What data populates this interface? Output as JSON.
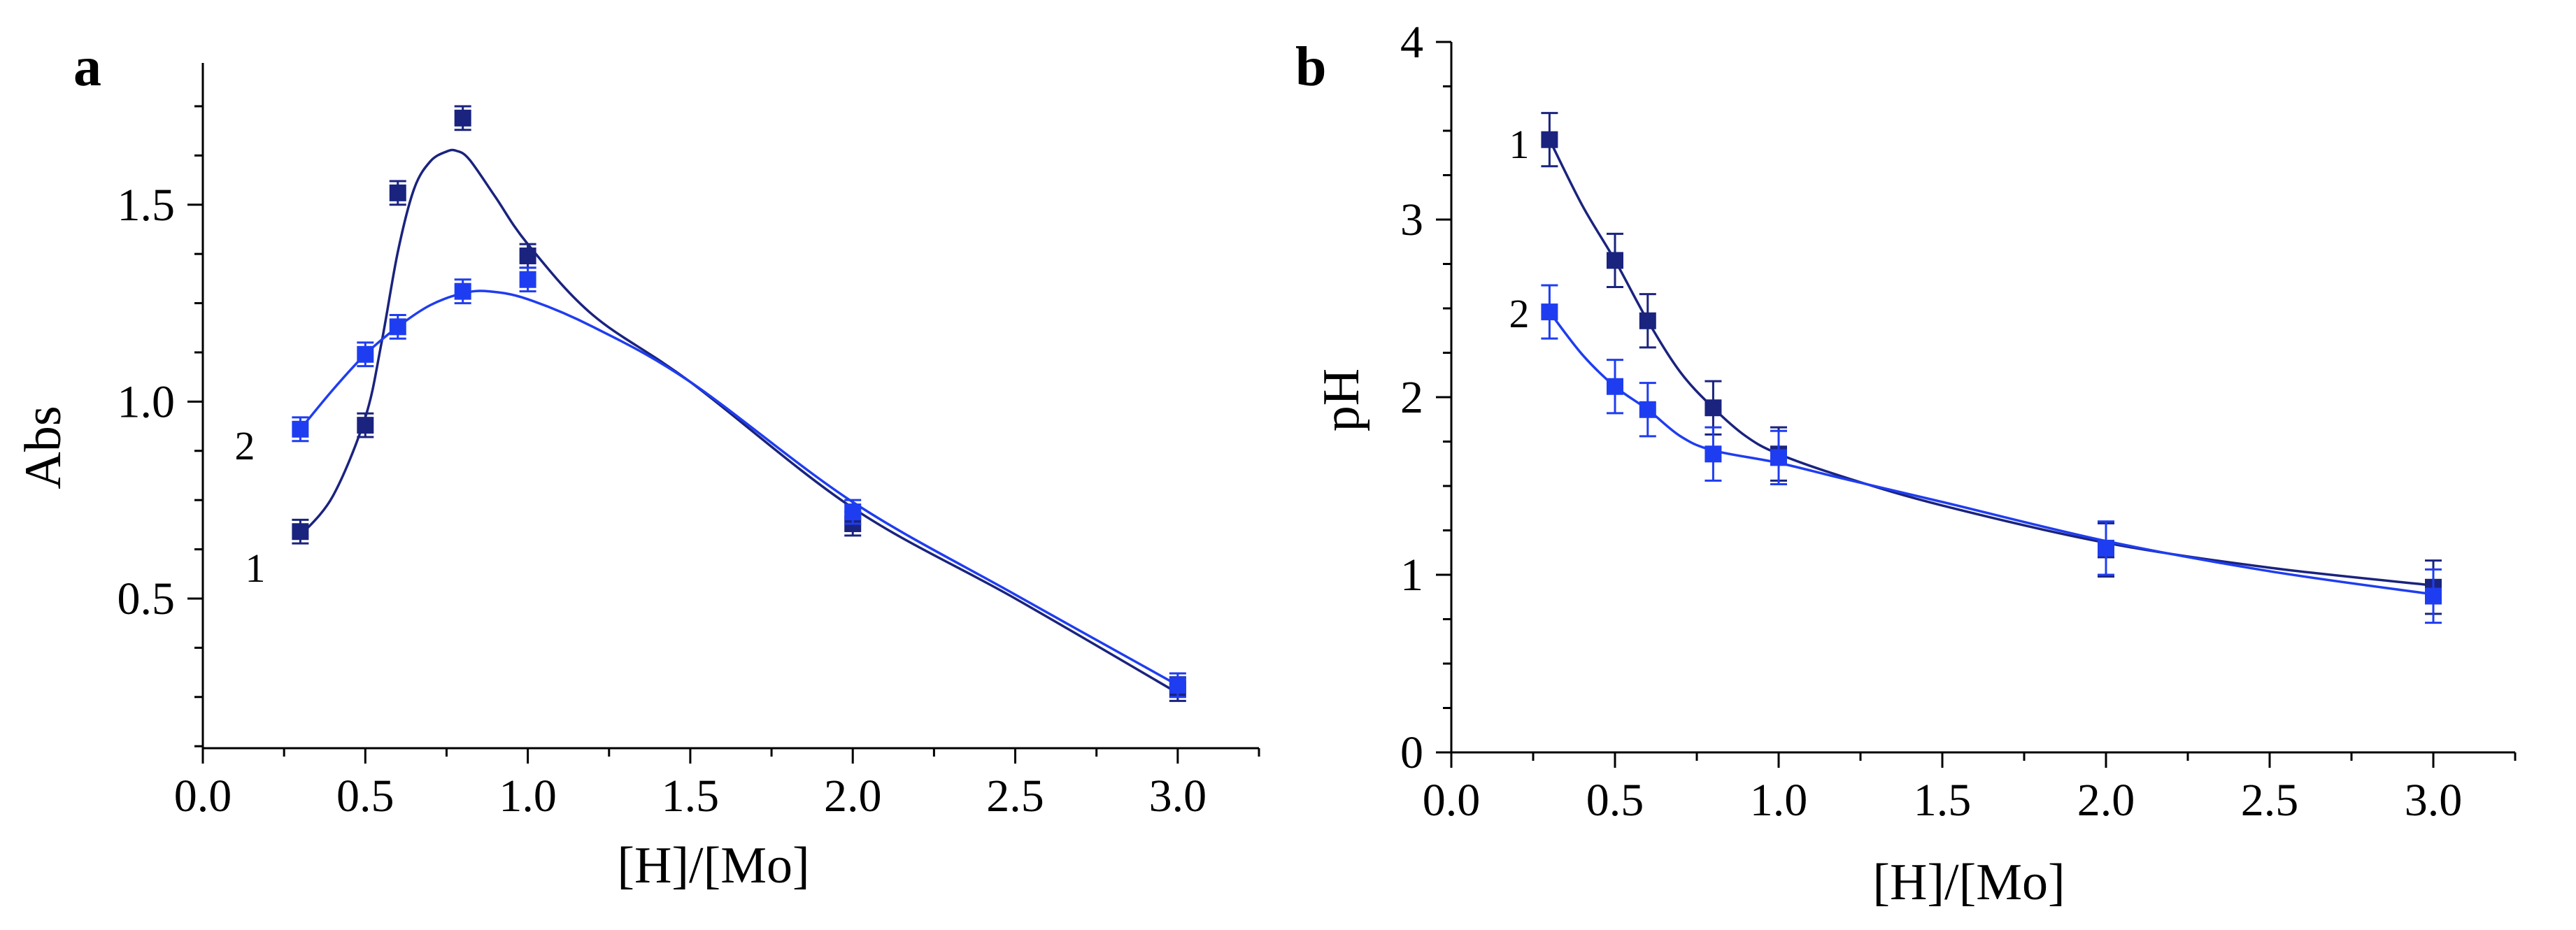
{
  "chart_data": [
    {
      "type": "scatter",
      "panel_label": "a",
      "xlabel": "[H]/[Mo]",
      "ylabel": "Abs",
      "xlim": [
        0.0,
        3.25
      ],
      "ylim": [
        0.12,
        1.86
      ],
      "xticks": [
        0.0,
        0.5,
        1.0,
        1.5,
        2.0,
        2.5,
        3.0
      ],
      "xtick_labels": [
        "0.0",
        "0.5",
        "1.0",
        "1.5",
        "2.0",
        "2.5",
        "3.0"
      ],
      "yticks": [
        0.5,
        1.0,
        1.5
      ],
      "ytick_labels": [
        "0.5",
        "1.0",
        "1.5"
      ],
      "series": [
        {
          "name": "1",
          "color": "#1a237e",
          "x": [
            0.3,
            0.5,
            0.6,
            0.8,
            1.0,
            2.0,
            3.0
          ],
          "y": [
            0.67,
            0.94,
            1.53,
            1.72,
            1.37,
            0.69,
            0.27
          ],
          "err": [
            0.03,
            0.03,
            0.03,
            0.03,
            0.03,
            0.03,
            0.03
          ],
          "fit_x": [
            0.3,
            0.4,
            0.5,
            0.55,
            0.6,
            0.65,
            0.7,
            0.75,
            0.78,
            0.82,
            0.9,
            1.0,
            1.2,
            1.5,
            2.0,
            2.5,
            3.0
          ],
          "fit_y": [
            0.66,
            0.76,
            0.96,
            1.15,
            1.38,
            1.54,
            1.61,
            1.635,
            1.637,
            1.615,
            1.52,
            1.4,
            1.22,
            1.05,
            0.73,
            0.5,
            0.26
          ]
        },
        {
          "name": "2",
          "color": "#1f3df0",
          "x": [
            0.3,
            0.5,
            0.6,
            0.8,
            1.0,
            2.0,
            3.0
          ],
          "y": [
            0.93,
            1.12,
            1.19,
            1.28,
            1.31,
            0.72,
            0.28
          ],
          "err": [
            0.03,
            0.03,
            0.03,
            0.03,
            0.03,
            0.03,
            0.03
          ],
          "fit_x": [
            0.3,
            0.4,
            0.5,
            0.6,
            0.7,
            0.8,
            0.88,
            1.0,
            1.2,
            1.5,
            2.0,
            2.5,
            3.0
          ],
          "fit_y": [
            0.93,
            1.03,
            1.12,
            1.19,
            1.245,
            1.275,
            1.28,
            1.26,
            1.19,
            1.05,
            0.745,
            0.51,
            0.28
          ]
        }
      ]
    },
    {
      "type": "scatter",
      "panel_label": "b",
      "xlabel": "[H]/[Mo]",
      "ylabel": "pH",
      "xlim": [
        0.0,
        3.25
      ],
      "ylim": [
        0,
        4
      ],
      "xticks": [
        0.0,
        0.5,
        1.0,
        1.5,
        2.0,
        2.5,
        3.0
      ],
      "xtick_labels": [
        "0.0",
        "0.5",
        "1.0",
        "1.5",
        "2.0",
        "2.5",
        "3.0"
      ],
      "yticks": [
        0,
        1,
        2,
        3,
        4
      ],
      "ytick_labels": [
        "0",
        "1",
        "2",
        "3",
        "4"
      ],
      "series": [
        {
          "name": "1",
          "color": "#1a237e",
          "x": [
            0.3,
            0.5,
            0.6,
            0.8,
            1.0,
            2.0,
            3.0
          ],
          "y": [
            3.45,
            2.77,
            2.43,
            1.94,
            1.68,
            1.14,
            0.93
          ],
          "err": [
            0.15,
            0.15,
            0.15,
            0.15,
            0.15,
            0.15,
            0.15
          ],
          "fit_x": [
            0.3,
            0.4,
            0.5,
            0.6,
            0.7,
            0.8,
            0.9,
            1.0,
            1.2,
            1.5,
            2.0,
            2.5,
            3.0
          ],
          "fit_y": [
            3.45,
            3.08,
            2.77,
            2.43,
            2.14,
            1.94,
            1.78,
            1.68,
            1.55,
            1.39,
            1.18,
            1.04,
            0.94
          ]
        },
        {
          "name": "2",
          "color": "#1f3df0",
          "x": [
            0.3,
            0.5,
            0.6,
            0.8,
            1.0,
            2.0,
            3.0
          ],
          "y": [
            2.48,
            2.06,
            1.93,
            1.68,
            1.66,
            1.15,
            0.88
          ],
          "err": [
            0.15,
            0.15,
            0.15,
            0.15,
            0.15,
            0.15,
            0.15
          ],
          "fit_x": [
            0.3,
            0.4,
            0.5,
            0.6,
            0.7,
            0.8,
            1.0,
            1.2,
            1.5,
            2.0,
            2.5,
            3.0
          ],
          "fit_y": [
            2.48,
            2.24,
            2.06,
            1.93,
            1.78,
            1.7,
            1.63,
            1.54,
            1.41,
            1.19,
            1.02,
            0.89
          ]
        }
      ]
    }
  ]
}
